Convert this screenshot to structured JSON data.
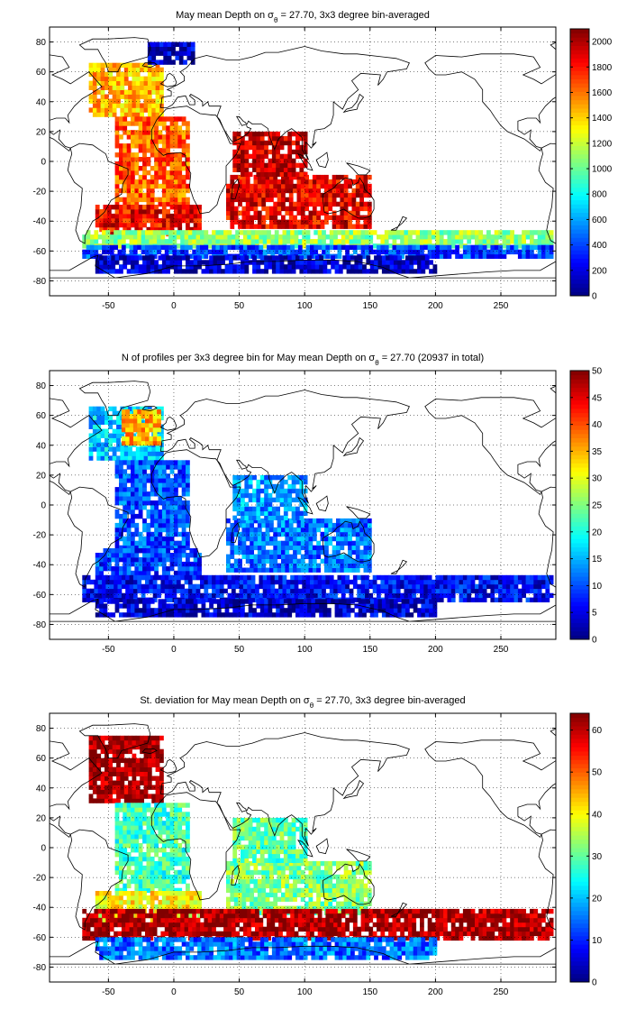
{
  "chart_data": [
    {
      "type": "heatmap",
      "title": "May mean Depth on σθ = 27.70, 3x3 degree bin-averaged",
      "title_parts": [
        "May mean Depth on σ",
        "θ",
        " = 27.70, 3x3 degree bin-averaged"
      ],
      "x_ticks": [
        "-50",
        "0",
        "50",
        "100",
        "150",
        "200",
        "250"
      ],
      "y_ticks": [
        "80",
        "60",
        "40",
        "20",
        "0",
        "-20",
        "-40",
        "-60",
        "-80"
      ],
      "xlim": [
        -95,
        292
      ],
      "ylim": [
        -90,
        90
      ],
      "grid": true,
      "colorbar": {
        "range": [
          0,
          2100
        ],
        "ticks": [
          "2000",
          "1800",
          "1600",
          "1400",
          "1200",
          "1000",
          "800",
          "600",
          "400",
          "200",
          "0"
        ]
      },
      "regions": [
        {
          "lon": [
            -65,
            -10
          ],
          "lat": [
            30,
            65
          ],
          "value": 1450
        },
        {
          "lon": [
            -45,
            10
          ],
          "lat": [
            -30,
            30
          ],
          "value": 1650
        },
        {
          "lon": [
            -60,
            20
          ],
          "lat": [
            -50,
            -30
          ],
          "value": 1850
        },
        {
          "lon": [
            40,
            150
          ],
          "lat": [
            -45,
            -10
          ],
          "value": 1880
        },
        {
          "lon": [
            45,
            100
          ],
          "lat": [
            -10,
            20
          ],
          "value": 1950
        },
        {
          "lon": [
            -70,
            290
          ],
          "lat": [
            -58,
            -48
          ],
          "value": 1100
        },
        {
          "lon": [
            -70,
            290
          ],
          "lat": [
            -65,
            -58
          ],
          "value": 400
        },
        {
          "lon": [
            -60,
            200
          ],
          "lat": [
            -75,
            -65
          ],
          "value": 150
        },
        {
          "lon": [
            -20,
            15
          ],
          "lat": [
            65,
            80
          ],
          "value": 150
        }
      ]
    },
    {
      "type": "heatmap",
      "title": "N of profiles per 3x3 degree bin for May mean Depth on σθ = 27.70 (20937 in total)",
      "title_parts": [
        "N of profiles per 3x3 degree bin for May mean Depth on σ",
        "θ",
        " = 27.70 (20937 in total)"
      ],
      "x_ticks": [
        "-50",
        "0",
        "50",
        "100",
        "150",
        "200",
        "250"
      ],
      "y_ticks": [
        "80",
        "60",
        "40",
        "20",
        "0",
        "-20",
        "-40",
        "-60",
        "-80"
      ],
      "xlim": [
        -95,
        292
      ],
      "ylim": [
        -90,
        90
      ],
      "grid": true,
      "colorbar": {
        "range": [
          0,
          50
        ],
        "ticks": [
          "50",
          "45",
          "40",
          "35",
          "30",
          "25",
          "20",
          "15",
          "10",
          "5",
          "0"
        ]
      },
      "regions": [
        {
          "lon": [
            -65,
            -10
          ],
          "lat": [
            30,
            65
          ],
          "value": 16
        },
        {
          "lon": [
            -40,
            -10
          ],
          "lat": [
            40,
            62
          ],
          "value": 35
        },
        {
          "lon": [
            -45,
            10
          ],
          "lat": [
            -30,
            30
          ],
          "value": 10
        },
        {
          "lon": [
            -60,
            20
          ],
          "lat": [
            -50,
            -30
          ],
          "value": 9
        },
        {
          "lon": [
            40,
            150
          ],
          "lat": [
            -45,
            -10
          ],
          "value": 12
        },
        {
          "lon": [
            45,
            100
          ],
          "lat": [
            -10,
            20
          ],
          "value": 14
        },
        {
          "lon": [
            -70,
            290
          ],
          "lat": [
            -65,
            -48
          ],
          "value": 6
        },
        {
          "lon": [
            -60,
            200
          ],
          "lat": [
            -75,
            -65
          ],
          "value": 4
        }
      ]
    },
    {
      "type": "heatmap",
      "title": "St. deviation for May mean Depth on σθ = 27.70, 3x3 degree bin-averaged",
      "title_parts": [
        "St. deviation for May mean Depth on σ",
        "θ",
        " = 27.70, 3x3 degree bin-averaged"
      ],
      "x_ticks": [
        "-50",
        "0",
        "50",
        "100",
        "150",
        "200",
        "250"
      ],
      "y_ticks": [
        "80",
        "60",
        "40",
        "20",
        "0",
        "-20",
        "-40",
        "-60",
        "-80"
      ],
      "xlim": [
        -95,
        292
      ],
      "ylim": [
        -90,
        90
      ],
      "grid": true,
      "colorbar": {
        "range": [
          0,
          64
        ],
        "ticks": [
          "60",
          "50",
          "40",
          "30",
          "20",
          "10",
          "0"
        ]
      },
      "regions": [
        {
          "lon": [
            -65,
            -10
          ],
          "lat": [
            30,
            75
          ],
          "value": 62
        },
        {
          "lon": [
            -45,
            10
          ],
          "lat": [
            -30,
            30
          ],
          "value": 28
        },
        {
          "lon": [
            -60,
            20
          ],
          "lat": [
            -50,
            -30
          ],
          "value": 40
        },
        {
          "lon": [
            40,
            150
          ],
          "lat": [
            -45,
            -10
          ],
          "value": 32
        },
        {
          "lon": [
            45,
            100
          ],
          "lat": [
            -10,
            20
          ],
          "value": 30
        },
        {
          "lon": [
            -70,
            290
          ],
          "lat": [
            -62,
            -42
          ],
          "value": 62
        },
        {
          "lon": [
            -60,
            200
          ],
          "lat": [
            -75,
            -62
          ],
          "value": 15
        }
      ]
    }
  ]
}
